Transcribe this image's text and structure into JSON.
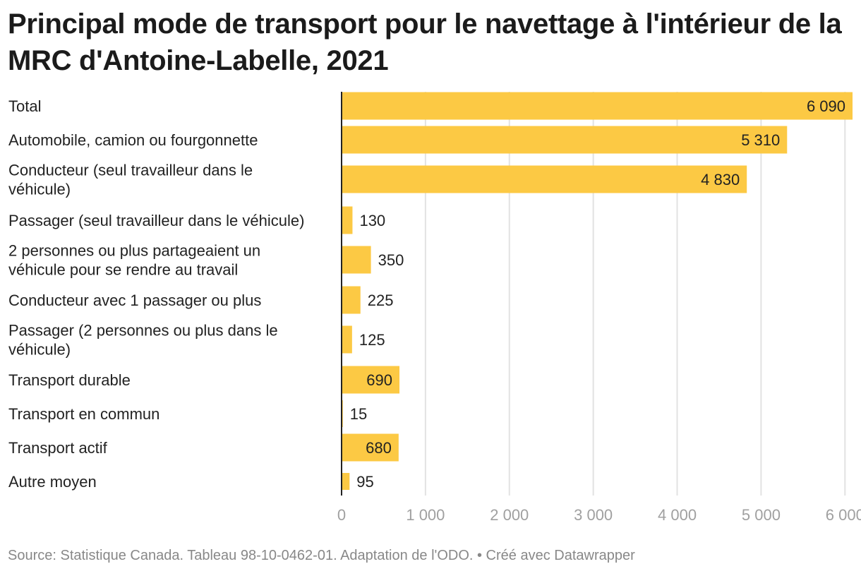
{
  "title": "Principal mode de transport pour le navettage à l'intérieur de la MRC d'Antoine-Labelle, 2021",
  "footer": "Source: Statistique Canada. Tableau 98-10-0462-01. Adaptation de l'ODO. • Créé avec Datawrapper",
  "colors": {
    "bar": "#fcc944",
    "grid": "#e2e2e2",
    "axis": "#222222",
    "tick": "#a0a0a0"
  },
  "chart_data": {
    "type": "bar",
    "orientation": "horizontal",
    "title": "Principal mode de transport pour le navettage à l'intérieur de la MRC d'Antoine-Labelle, 2021",
    "xlabel": "",
    "ylabel": "",
    "xlim": [
      0,
      6090
    ],
    "grid": true,
    "categories": [
      {
        "label": [
          "Total"
        ],
        "value": 6090,
        "value_label": "6 090"
      },
      {
        "label": [
          "Automobile, camion ou fourgonnette"
        ],
        "value": 5310,
        "value_label": "5 310"
      },
      {
        "label": [
          "Conducteur (seul travailleur dans le",
          "véhicule)"
        ],
        "value": 4830,
        "value_label": "4 830"
      },
      {
        "label": [
          "Passager (seul travailleur dans le véhicule)"
        ],
        "value": 130,
        "value_label": "130"
      },
      {
        "label": [
          "2 personnes ou plus partageaient un",
          "véhicule pour se rendre au travail"
        ],
        "value": 350,
        "value_label": "350"
      },
      {
        "label": [
          "Conducteur avec 1 passager ou plus"
        ],
        "value": 225,
        "value_label": "225"
      },
      {
        "label": [
          "Passager (2 personnes ou plus dans le",
          "véhicule)"
        ],
        "value": 125,
        "value_label": "125"
      },
      {
        "label": [
          "Transport durable"
        ],
        "value": 690,
        "value_label": "690"
      },
      {
        "label": [
          "Transport en commun"
        ],
        "value": 15,
        "value_label": "15"
      },
      {
        "label": [
          "Transport actif"
        ],
        "value": 680,
        "value_label": "680"
      },
      {
        "label": [
          "Autre moyen"
        ],
        "value": 95,
        "value_label": "95"
      }
    ],
    "ticks": [
      {
        "value": 0,
        "label": "0"
      },
      {
        "value": 1000,
        "label": "1 000"
      },
      {
        "value": 2000,
        "label": "2 000"
      },
      {
        "value": 3000,
        "label": "3 000"
      },
      {
        "value": 4000,
        "label": "4 000"
      },
      {
        "value": 5000,
        "label": "5 000"
      },
      {
        "value": 6000,
        "label": "6 000"
      }
    ]
  }
}
